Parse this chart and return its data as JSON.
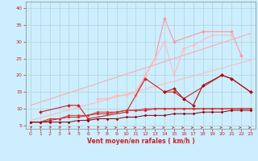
{
  "bg_color": "#cceeff",
  "grid_color": "#aacccc",
  "xlabel": "Vent moyen/en rafales ( km/h )",
  "xlim": [
    -0.5,
    23.5
  ],
  "ylim": [
    4,
    42
  ],
  "yticks": [
    5,
    10,
    15,
    20,
    25,
    30,
    35,
    40
  ],
  "xticks": [
    0,
    1,
    2,
    3,
    4,
    5,
    6,
    7,
    8,
    9,
    10,
    11,
    12,
    13,
    14,
    15,
    16,
    17,
    18,
    19,
    20,
    21,
    22,
    23
  ],
  "tick_color": "#cc2222",
  "label_color": "#cc2222",
  "arrow_color": "#cc2222",
  "lines": [
    {
      "name": "trend_low",
      "x": [
        0,
        23
      ],
      "y": [
        6.5,
        24.5
      ],
      "color": "#ffbbbb",
      "lw": 0.8,
      "marker": null,
      "ms": 0
    },
    {
      "name": "trend_high",
      "x": [
        0,
        23
      ],
      "y": [
        11.0,
        32.5
      ],
      "color": "#ffaaaa",
      "lw": 0.8,
      "marker": null,
      "ms": 0
    },
    {
      "name": "pink_jagged_upper",
      "x": [
        11,
        12,
        13,
        14,
        15,
        18,
        21,
        22
      ],
      "y": [
        14,
        20,
        25,
        37,
        30,
        33,
        33,
        26
      ],
      "color": "#ff9999",
      "lw": 0.8,
      "marker": "D",
      "ms": 2
    },
    {
      "name": "pink_jagged_lower",
      "x": [
        7,
        8,
        9,
        10,
        11,
        12,
        13,
        14,
        15,
        16,
        17,
        19,
        21
      ],
      "y": [
        13,
        13,
        14,
        14,
        15,
        20,
        25,
        30,
        20,
        28,
        29,
        32,
        32
      ],
      "color": "#ffbbbb",
      "lw": 0.8,
      "marker": "D",
      "ms": 2
    },
    {
      "name": "red_jagged1",
      "x": [
        1,
        4,
        5,
        6,
        10,
        12,
        14,
        15,
        16,
        20,
        21,
        23
      ],
      "y": [
        9,
        11,
        11,
        7,
        9,
        19,
        15,
        15,
        13,
        20,
        19,
        15
      ],
      "color": "#cc2222",
      "lw": 0.8,
      "marker": "D",
      "ms": 2
    },
    {
      "name": "red_jagged2",
      "x": [
        14,
        15,
        16,
        17,
        18,
        20,
        21,
        23
      ],
      "y": [
        15,
        16,
        13,
        11,
        17,
        20,
        19,
        15
      ],
      "color": "#aa1111",
      "lw": 0.8,
      "marker": "D",
      "ms": 2
    },
    {
      "name": "red_low1",
      "x": [
        0,
        1,
        2,
        3,
        4,
        5,
        6,
        7,
        8,
        9,
        10,
        11,
        12,
        13,
        14,
        15,
        16,
        17,
        18,
        19,
        20,
        21,
        22,
        23
      ],
      "y": [
        6,
        6,
        6.5,
        7,
        7.5,
        7.5,
        8,
        8.5,
        8.5,
        9,
        9.5,
        9.5,
        9.5,
        10,
        10,
        10,
        10,
        10,
        10,
        10,
        10,
        10,
        10,
        10
      ],
      "color": "#cc1111",
      "lw": 0.7,
      "marker": "D",
      "ms": 1.5
    },
    {
      "name": "red_low2",
      "x": [
        0,
        1,
        2,
        3,
        4,
        5,
        6,
        7,
        8,
        9,
        10,
        11,
        12,
        13,
        14,
        15,
        16,
        17,
        18,
        19,
        20,
        21,
        22,
        23
      ],
      "y": [
        6,
        6,
        7,
        7,
        8,
        8,
        8,
        9,
        9,
        9,
        9.5,
        9.5,
        10,
        10,
        10,
        10,
        10,
        10,
        10,
        10,
        10,
        10,
        10,
        10
      ],
      "color": "#dd3333",
      "lw": 0.7,
      "marker": "D",
      "ms": 1.5
    },
    {
      "name": "red_flat",
      "x": [
        0,
        1,
        2,
        3,
        4,
        5,
        6,
        7,
        8,
        9,
        10,
        11,
        12,
        13,
        14,
        15,
        16,
        17,
        18,
        19,
        20,
        21,
        22,
        23
      ],
      "y": [
        6,
        6,
        6,
        6,
        6,
        6.5,
        6.5,
        7,
        7,
        7,
        7.5,
        7.5,
        8,
        8,
        8,
        8.5,
        8.5,
        8.5,
        9,
        9,
        9,
        9.5,
        9.5,
        9.5
      ],
      "color": "#880000",
      "lw": 0.7,
      "marker": "D",
      "ms": 1.5
    }
  ],
  "arrows": {
    "x": [
      0,
      1,
      2,
      3,
      4,
      5,
      6,
      7,
      8,
      9,
      10,
      11,
      12,
      13,
      14,
      15,
      16,
      17,
      18,
      19,
      20,
      21,
      22,
      23
    ],
    "angles_deg": [
      45,
      45,
      45,
      45,
      45,
      45,
      45,
      45,
      10,
      10,
      10,
      10,
      10,
      10,
      10,
      10,
      10,
      10,
      10,
      10,
      10,
      10,
      10,
      10
    ],
    "y_base": 4.4,
    "color": "#cc2222"
  }
}
